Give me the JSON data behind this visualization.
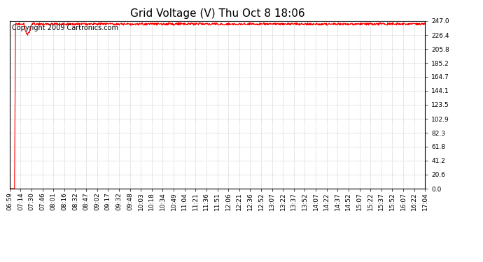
{
  "title": "Grid Voltage (V) Thu Oct 8 18:06",
  "copyright_text": "Copyright 2009 Cartronics.com",
  "x_labels": [
    "06:59",
    "07:14",
    "07:30",
    "07:46",
    "08:01",
    "08:16",
    "08:32",
    "08:47",
    "09:02",
    "09:17",
    "09:32",
    "09:48",
    "10:03",
    "10:18",
    "10:34",
    "10:49",
    "11:04",
    "11:21",
    "11:36",
    "11:51",
    "12:06",
    "12:21",
    "12:36",
    "12:52",
    "13:07",
    "13:22",
    "13:37",
    "13:52",
    "14:07",
    "14:22",
    "14:37",
    "14:52",
    "15:07",
    "15:22",
    "15:37",
    "15:52",
    "16:07",
    "16:22",
    "17:04"
  ],
  "y_ticks": [
    0.0,
    20.6,
    41.2,
    61.8,
    82.3,
    102.9,
    123.5,
    144.1,
    164.7,
    185.2,
    205.8,
    226.4,
    247.0
  ],
  "y_min": 0.0,
  "y_max": 247.0,
  "line_color": "#ff0000",
  "background_color": "#ffffff",
  "grid_color": "#aaaaaa",
  "title_fontsize": 11,
  "copyright_fontsize": 7,
  "tick_fontsize": 6.5,
  "line_width": 0.8,
  "signal_steady_value": 242.5,
  "signal_noise": 1.8,
  "num_points": 1200
}
